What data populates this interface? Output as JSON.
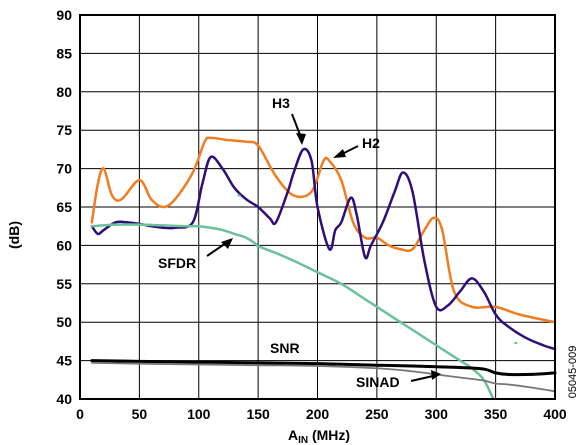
{
  "chart_data": {
    "type": "line",
    "title": "",
    "xlabel_main": "A",
    "xlabel_sub": "IN",
    "xlabel_unit": " (MHz)",
    "ylabel": "(dB)",
    "xlim": [
      0,
      400
    ],
    "ylim": [
      40,
      90
    ],
    "xticks": [
      0,
      50,
      100,
      150,
      200,
      250,
      300,
      350,
      400
    ],
    "yticks": [
      40,
      45,
      50,
      55,
      60,
      65,
      70,
      75,
      80,
      85,
      90
    ],
    "grid": true,
    "side_note": "05045-009",
    "series": [
      {
        "name": "H2",
        "color": "#F07D21",
        "x": [
          10,
          15,
          20,
          27,
          35,
          50,
          60,
          70,
          80,
          95,
          105,
          110,
          125,
          140,
          150,
          165,
          180,
          195,
          205,
          210,
          220,
          230,
          240,
          250,
          260,
          270,
          280,
          290,
          298,
          305,
          315,
          330,
          350,
          370,
          400
        ],
        "y": [
          63,
          68,
          70,
          66.5,
          66,
          68.5,
          66,
          65,
          66,
          69.5,
          73.5,
          74,
          73.7,
          73.5,
          73,
          69,
          66.5,
          67,
          71,
          71,
          68.5,
          63,
          61,
          61,
          60,
          59.5,
          59.5,
          62,
          63.6,
          62,
          54,
          52,
          52,
          51,
          50
        ]
      },
      {
        "name": "H3",
        "color": "#2E0F7A",
        "x": [
          10,
          15,
          20,
          30,
          40,
          50,
          60,
          70,
          80,
          95,
          103,
          110,
          120,
          130,
          140,
          150,
          160,
          165,
          175,
          180,
          188,
          195,
          200,
          210,
          215,
          220,
          228,
          233,
          240,
          245,
          255,
          265,
          272,
          280,
          290,
          300,
          310,
          320,
          330,
          340,
          350,
          360,
          375,
          390,
          400
        ],
        "y": [
          62.5,
          61.5,
          62,
          63,
          63,
          62.8,
          62.5,
          62.3,
          62.3,
          63,
          68,
          71.5,
          70,
          67.5,
          66,
          65,
          63.5,
          63,
          67,
          69.5,
          72.5,
          71,
          65,
          59.5,
          62,
          63,
          66.2,
          64,
          58.5,
          60,
          63,
          67,
          69.5,
          67,
          58,
          52,
          52.2,
          54,
          55.7,
          54,
          51,
          49.5,
          48,
          47,
          46.5
        ]
      },
      {
        "name": "SFDR",
        "color": "#6CC09A",
        "x": [
          10,
          30,
          50,
          70,
          90,
          100,
          110,
          120,
          130,
          140,
          148,
          150,
          165,
          180,
          200,
          220,
          240,
          260,
          280,
          300,
          320,
          330,
          340,
          348
        ],
        "y": [
          62.5,
          62.7,
          62.7,
          62.6,
          62.5,
          62.5,
          62.3,
          62,
          61.5,
          61,
          60.2,
          59.9,
          59,
          58,
          56.5,
          55,
          53,
          51,
          49,
          47,
          45,
          44,
          42.5,
          40
        ]
      },
      {
        "name": "SNR",
        "color": "#000000",
        "x": [
          10,
          50,
          100,
          150,
          200,
          250,
          280,
          300,
          320,
          340,
          350,
          360,
          380,
          400
        ],
        "y": [
          45,
          44.9,
          44.8,
          44.7,
          44.6,
          44.4,
          44.3,
          44.2,
          44.1,
          43.9,
          43.4,
          43.2,
          43.2,
          43.4
        ]
      },
      {
        "name": "SINAD",
        "color": "#777777",
        "x": [
          10,
          50,
          100,
          150,
          200,
          250,
          280,
          300,
          320,
          340,
          350,
          360,
          380,
          400
        ],
        "y": [
          44.7,
          44.6,
          44.5,
          44.4,
          44.3,
          44,
          43.6,
          43.2,
          42.8,
          42.4,
          42,
          41.9,
          41.5,
          41
        ]
      }
    ],
    "stray_marks": [
      {
        "x": 134,
        "y": 66.5
      },
      {
        "x": 150,
        "y": 61.8
      },
      {
        "x": 367,
        "y": 47.3
      }
    ],
    "annotations": [
      {
        "text": "H3"
      },
      {
        "text": "H2"
      },
      {
        "text": "SFDR"
      },
      {
        "text": "SNR"
      },
      {
        "text": "SINAD"
      }
    ]
  }
}
